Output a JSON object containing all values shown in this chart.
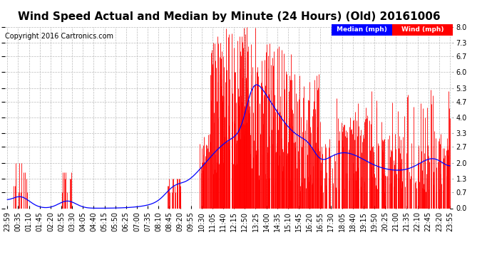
{
  "title": "Wind Speed Actual and Median by Minute (24 Hours) (Old) 20161006",
  "copyright": "Copyright 2016 Cartronics.com",
  "legend_median_label": "Median (mph)",
  "legend_wind_label": "Wind (mph)",
  "legend_median_color": "#0000FF",
  "legend_wind_color": "#FF0000",
  "yticks": [
    0.0,
    0.7,
    1.3,
    2.0,
    2.7,
    3.3,
    4.0,
    4.7,
    5.3,
    6.0,
    6.7,
    7.3,
    8.0
  ],
  "ylim": [
    0.0,
    8.0
  ],
  "wind_color": "#FF0000",
  "median_color": "#0000FF",
  "background_color": "#FFFFFF",
  "grid_color": "#BBBBBB",
  "title_fontsize": 11,
  "copyright_fontsize": 7,
  "tick_fontsize": 7,
  "xtick_labels": [
    "23:59",
    "00:35",
    "01:10",
    "01:45",
    "02:20",
    "02:55",
    "03:30",
    "04:05",
    "04:40",
    "05:15",
    "05:50",
    "06:25",
    "07:00",
    "07:35",
    "08:10",
    "08:45",
    "09:20",
    "09:55",
    "10:30",
    "11:05",
    "11:40",
    "12:15",
    "12:50",
    "13:25",
    "14:00",
    "14:35",
    "15:10",
    "15:45",
    "16:20",
    "16:55",
    "17:30",
    "18:05",
    "18:40",
    "19:15",
    "19:50",
    "20:25",
    "21:00",
    "21:35",
    "22:10",
    "22:45",
    "23:20",
    "23:55"
  ]
}
